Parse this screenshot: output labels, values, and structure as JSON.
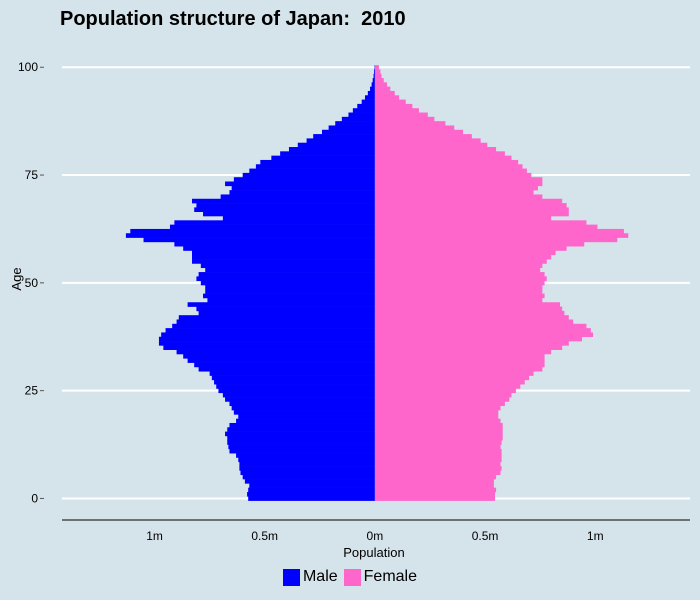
{
  "chart_data": {
    "type": "bar",
    "title": "Population structure of Japan:  2010",
    "xlabel": "Population",
    "ylabel": "Age",
    "orientation": "horizontal-pyramid",
    "x_ticks": [
      "1m",
      "0.5m",
      "0m",
      "0.5m",
      "1m"
    ],
    "x_tick_values": [
      -1000000,
      -500000,
      0,
      500000,
      1000000
    ],
    "xlim": [
      -1420000,
      1430000
    ],
    "y_ticks": [
      0,
      25,
      50,
      75,
      100
    ],
    "ylim": [
      -5,
      104
    ],
    "grid": "horizontal",
    "legend_position": "bottom",
    "colors": {
      "Male": "#0000ff",
      "Female": "#ff66cc"
    },
    "ages": [
      0,
      1,
      2,
      3,
      4,
      5,
      6,
      7,
      8,
      9,
      10,
      11,
      12,
      13,
      14,
      15,
      16,
      17,
      18,
      19,
      20,
      21,
      22,
      23,
      24,
      25,
      26,
      27,
      28,
      29,
      30,
      31,
      32,
      33,
      34,
      35,
      36,
      37,
      38,
      39,
      40,
      41,
      42,
      43,
      44,
      45,
      46,
      47,
      48,
      49,
      50,
      51,
      52,
      53,
      54,
      55,
      56,
      57,
      58,
      59,
      60,
      61,
      62,
      63,
      64,
      65,
      66,
      67,
      68,
      69,
      70,
      71,
      72,
      73,
      74,
      75,
      76,
      77,
      78,
      79,
      80,
      81,
      82,
      83,
      84,
      85,
      86,
      87,
      88,
      89,
      90,
      91,
      92,
      93,
      94,
      95,
      96,
      97,
      98,
      99,
      100
    ],
    "series": [
      {
        "name": "Male",
        "values": [
          575000,
          580000,
          575000,
          570000,
          590000,
          600000,
          610000,
          615000,
          615000,
          620000,
          630000,
          660000,
          665000,
          670000,
          670000,
          680000,
          670000,
          660000,
          630000,
          620000,
          640000,
          650000,
          660000,
          680000,
          690000,
          710000,
          720000,
          730000,
          740000,
          750000,
          800000,
          820000,
          850000,
          870000,
          900000,
          960000,
          980000,
          980000,
          970000,
          950000,
          920000,
          900000,
          890000,
          800000,
          810000,
          850000,
          760000,
          780000,
          770000,
          770000,
          790000,
          810000,
          800000,
          770000,
          790000,
          830000,
          830000,
          830000,
          870000,
          910000,
          1050000,
          1130000,
          1110000,
          930000,
          910000,
          690000,
          780000,
          820000,
          810000,
          830000,
          700000,
          660000,
          650000,
          680000,
          640000,
          600000,
          570000,
          540000,
          520000,
          470000,
          430000,
          390000,
          350000,
          310000,
          280000,
          240000,
          210000,
          180000,
          150000,
          120000,
          100000,
          80000,
          60000,
          45000,
          32000,
          22000,
          15000,
          10000,
          6000,
          4000,
          2000
        ]
      },
      {
        "name": "Female",
        "values": [
          545000,
          545000,
          550000,
          540000,
          540000,
          550000,
          570000,
          575000,
          570000,
          575000,
          575000,
          575000,
          570000,
          575000,
          580000,
          580000,
          580000,
          580000,
          570000,
          560000,
          560000,
          570000,
          590000,
          610000,
          620000,
          640000,
          660000,
          680000,
          700000,
          720000,
          760000,
          770000,
          770000,
          770000,
          800000,
          850000,
          880000,
          940000,
          990000,
          980000,
          960000,
          900000,
          880000,
          860000,
          850000,
          840000,
          760000,
          770000,
          760000,
          760000,
          770000,
          780000,
          770000,
          750000,
          760000,
          780000,
          800000,
          820000,
          870000,
          950000,
          1100000,
          1150000,
          1130000,
          1010000,
          960000,
          800000,
          880000,
          880000,
          870000,
          850000,
          760000,
          720000,
          740000,
          760000,
          760000,
          710000,
          690000,
          670000,
          650000,
          620000,
          590000,
          550000,
          510000,
          480000,
          440000,
          400000,
          360000,
          320000,
          270000,
          240000,
          200000,
          170000,
          140000,
          110000,
          90000,
          70000,
          55000,
          40000,
          30000,
          25000,
          18000
        ]
      }
    ]
  }
}
